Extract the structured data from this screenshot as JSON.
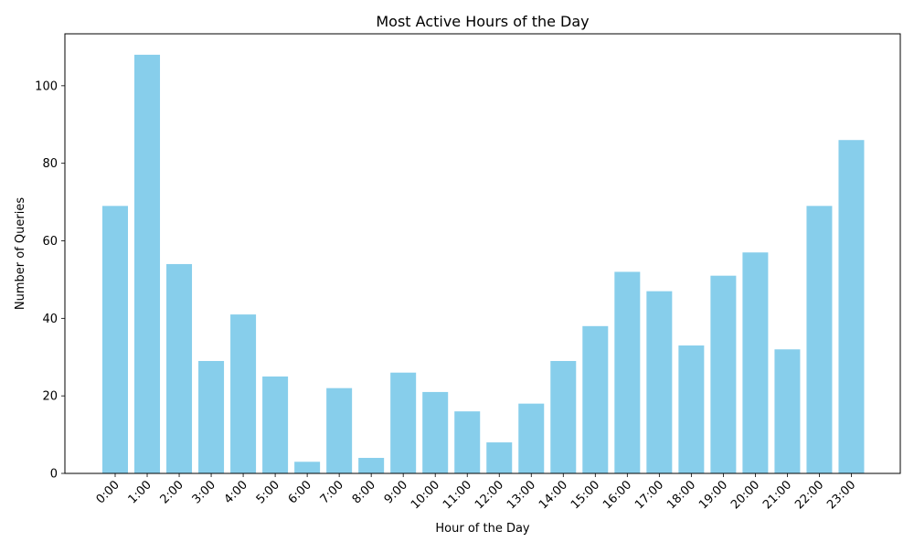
{
  "chart_data": {
    "type": "bar",
    "title": "Most Active Hours of the Day",
    "xlabel": "Hour of the Day",
    "ylabel": "Number of Queries",
    "categories": [
      "0:00",
      "1:00",
      "2:00",
      "3:00",
      "4:00",
      "5:00",
      "6:00",
      "7:00",
      "8:00",
      "9:00",
      "10:00",
      "11:00",
      "12:00",
      "13:00",
      "14:00",
      "15:00",
      "16:00",
      "17:00",
      "18:00",
      "19:00",
      "20:00",
      "21:00",
      "22:00",
      "23:00"
    ],
    "values": [
      69,
      108,
      54,
      29,
      41,
      25,
      3,
      22,
      4,
      26,
      21,
      16,
      8,
      18,
      29,
      38,
      52,
      47,
      33,
      51,
      57,
      32,
      69,
      86
    ],
    "ylim": [
      0,
      113.4
    ],
    "yticks": [
      0,
      20,
      40,
      60,
      80,
      100
    ],
    "grid": false,
    "bar_color": "#87CEEB"
  }
}
